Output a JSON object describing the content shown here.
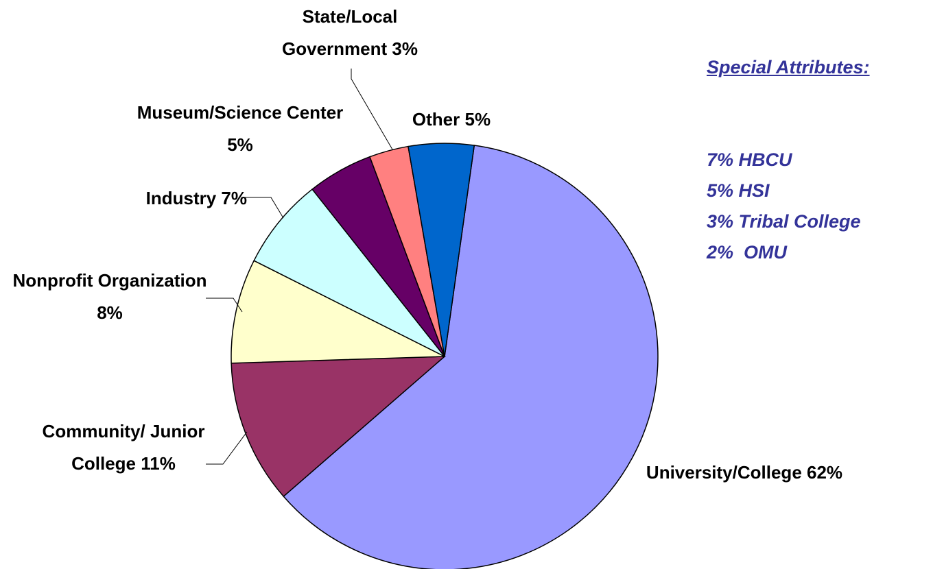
{
  "chart_data": {
    "type": "pie",
    "categories": [
      "University/College",
      "Community/ Junior College",
      "Nonprofit Organization",
      "Industry",
      "Museum/Science Center",
      "State/Local Government",
      "Other"
    ],
    "values": [
      62,
      11,
      8,
      7,
      5,
      3,
      5
    ],
    "value_labels": [
      "62%",
      "11%",
      "8%",
      "7%",
      "5%",
      "3%",
      "5%"
    ],
    "colors": [
      "#9999ff",
      "#993366",
      "#ffffcc",
      "#ccffff",
      "#660066",
      "#ff8080",
      "#0066cc"
    ],
    "annotation": {
      "title": "Special Attributes:",
      "items": [
        "7% HBCU",
        "5% HSI",
        "3% Tribal College",
        "2%  OMU"
      ]
    }
  }
}
